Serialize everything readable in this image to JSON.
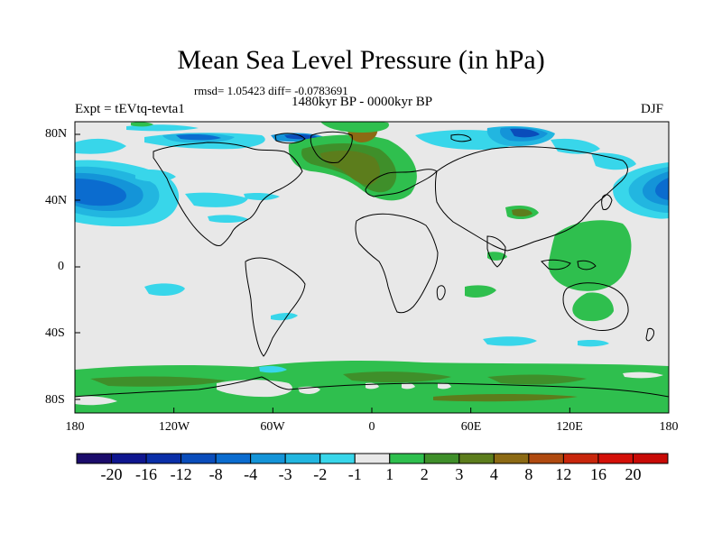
{
  "title": "Mean Sea Level Pressure (in hPa)",
  "subtitle_stats": "rmsd= 1.05423 diff= -0.0783691",
  "subtitle_period": "1480kyr BP - 0000kyr BP",
  "experiment": "Expt = tEVtq-tevta1",
  "season": "DJF",
  "lat_labels": [
    "80N",
    "40N",
    "0",
    "40S",
    "80S"
  ],
  "lon_labels": [
    "180",
    "120W",
    "60W",
    "0",
    "60E",
    "120E",
    "180"
  ],
  "colorbar": {
    "labels": [
      "-20",
      "-16",
      "-12",
      "-8",
      "-4",
      "-3",
      "-2",
      "-1",
      "1",
      "2",
      "3",
      "4",
      "8",
      "12",
      "16",
      "20"
    ],
    "colors": [
      "#1b0c6b",
      "#0f168f",
      "#0a2fa8",
      "#0a4dbb",
      "#0b6ccf",
      "#1494d8",
      "#22b6e0",
      "#38d6ea",
      "#e8e8e8",
      "#2fbf4e",
      "#3f8f2a",
      "#5c7d1c",
      "#8c6a14",
      "#b04a10",
      "#c8260c",
      "#d41008",
      "#c80a06"
    ]
  },
  "colors": {
    "neutral": "#e8e8e8",
    "green": "#2fbf4e",
    "dark_green": "#3f8f2a",
    "olive": "#5c7d1c",
    "brown": "#8c6a14",
    "cyan": "#38d6ea",
    "light_blue": "#22b6e0",
    "mid_blue": "#1494d8",
    "blue": "#0b6ccf",
    "dark_blue": "#0a4dbb",
    "deep_blue": "#0a2fa8"
  }
}
